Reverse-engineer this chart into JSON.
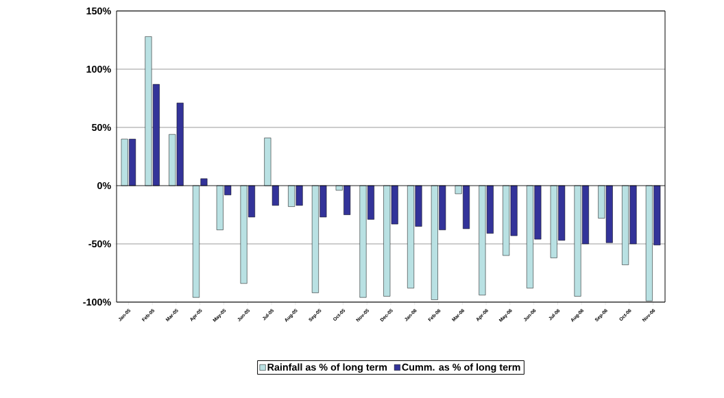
{
  "chart_data": {
    "type": "bar",
    "categories": [
      "Jan-05",
      "Feb-05",
      "Mar-05",
      "Apr-05",
      "May-05",
      "Jun-05",
      "Jul-05",
      "Aug-05",
      "Sep-05",
      "Oct-05",
      "Nov-05",
      "Dec-05",
      "Jan-06",
      "Feb-06",
      "Mar-06",
      "Apr-06",
      "May-06",
      "Jun-06",
      "Jul-06",
      "Aug-06",
      "Sep-06",
      "Oct-06",
      "Nov-06"
    ],
    "series": [
      {
        "name": "Rainfall as % of long term",
        "color": "#b9e1e3",
        "values": [
          40,
          128,
          44,
          -96,
          -38,
          -84,
          41,
          -18,
          -92,
          -4,
          -96,
          -95,
          -88,
          -98,
          -7,
          -94,
          -60,
          -88,
          -62,
          -95,
          -28,
          -68,
          -99
        ]
      },
      {
        "name": "Cumm. as % of long term",
        "color": "#333399",
        "values": [
          40,
          87,
          71,
          6,
          -8,
          -27,
          -17,
          -17,
          -27,
          -25,
          -29,
          -33,
          -35,
          -38,
          -37,
          -41,
          -43,
          -46,
          -47,
          -50,
          -49,
          -50,
          -51
        ]
      }
    ],
    "ylim": [
      -100,
      150
    ],
    "yticks": [
      {
        "value": -100,
        "label": "-100%"
      },
      {
        "value": -50,
        "label": "-50%"
      },
      {
        "value": 0,
        "label": "0%"
      },
      {
        "value": 50,
        "label": "50%"
      },
      {
        "value": 100,
        "label": "100%"
      },
      {
        "value": 150,
        "label": "150%"
      }
    ],
    "grid": "y",
    "legend": "bottom"
  }
}
